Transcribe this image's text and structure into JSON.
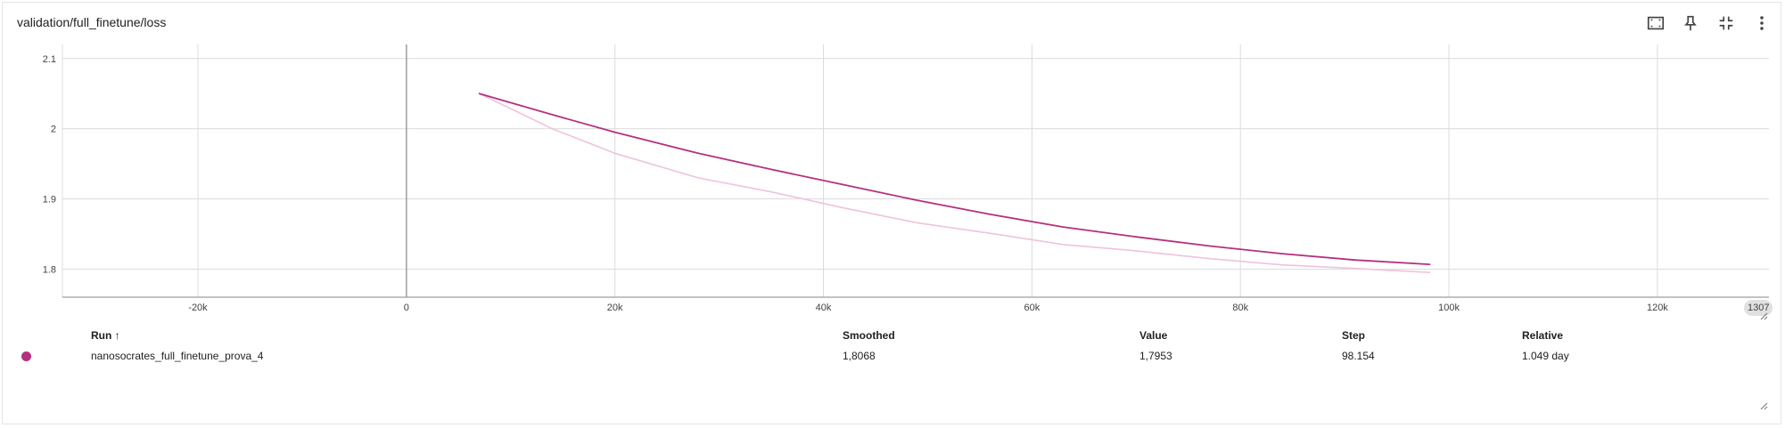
{
  "card": {
    "title": "validation/full_finetune/loss",
    "toolbar": [
      {
        "name": "fit-domain-button",
        "icon": "fit-to-data-icon"
      },
      {
        "name": "pin-button",
        "icon": "pin-icon"
      },
      {
        "name": "collapse-button",
        "icon": "collapse-icon"
      },
      {
        "name": "more-menu-button",
        "icon": "more-vert-icon"
      }
    ]
  },
  "chart_data": {
    "type": "line",
    "title": "validation/full_finetune/loss",
    "xlim": [
      -33000,
      130700
    ],
    "ylim": [
      1.76,
      2.12
    ],
    "x_ticks": [
      {
        "value": -20000,
        "label": "-20k"
      },
      {
        "value": 0,
        "label": "0"
      },
      {
        "value": 20000,
        "label": "20k"
      },
      {
        "value": 40000,
        "label": "40k"
      },
      {
        "value": 60000,
        "label": "60k"
      },
      {
        "value": 80000,
        "label": "80k"
      },
      {
        "value": 100000,
        "label": "100k"
      },
      {
        "value": 120000,
        "label": "120k"
      }
    ],
    "x_edge_label": "1307",
    "y_ticks": [
      {
        "value": 2.1,
        "label": "2.1"
      },
      {
        "value": 2.0,
        "label": "2"
      },
      {
        "value": 1.9,
        "label": "1.9"
      },
      {
        "value": 1.8,
        "label": "1.8"
      }
    ],
    "grid": true,
    "series": [
      {
        "name": "nanosocrates_full_finetune_prova_4",
        "role": "smoothed",
        "color": "#b5307e",
        "x": [
          7000,
          14000,
          20000,
          28000,
          35000,
          42000,
          49000,
          56000,
          63000,
          70000,
          77000,
          84000,
          91000,
          98154
        ],
        "y": [
          2.05,
          2.02,
          1.995,
          1.965,
          1.942,
          1.92,
          1.898,
          1.878,
          1.86,
          1.846,
          1.833,
          1.822,
          1.813,
          1.8068
        ]
      },
      {
        "name": "nanosocrates_full_finetune_prova_4",
        "role": "raw",
        "color": "#efc2dc",
        "x": [
          7000,
          14000,
          20000,
          28000,
          35000,
          42000,
          49000,
          56000,
          63000,
          70000,
          77000,
          84000,
          91000,
          98154
        ],
        "y": [
          2.05,
          2.0,
          1.965,
          1.93,
          1.91,
          1.887,
          1.866,
          1.851,
          1.835,
          1.826,
          1.815,
          1.806,
          1.801,
          1.7953
        ]
      }
    ]
  },
  "table": {
    "headers": {
      "run": "Run ↑",
      "smoothed": "Smoothed",
      "value": "Value",
      "step": "Step",
      "relative": "Relative"
    },
    "rows": [
      {
        "color": "#b5307e",
        "run": "nanosocrates_full_finetune_prova_4",
        "smoothed": "1,8068",
        "value": "1,7953",
        "step": "98.154",
        "relative": "1.049 day"
      }
    ]
  }
}
